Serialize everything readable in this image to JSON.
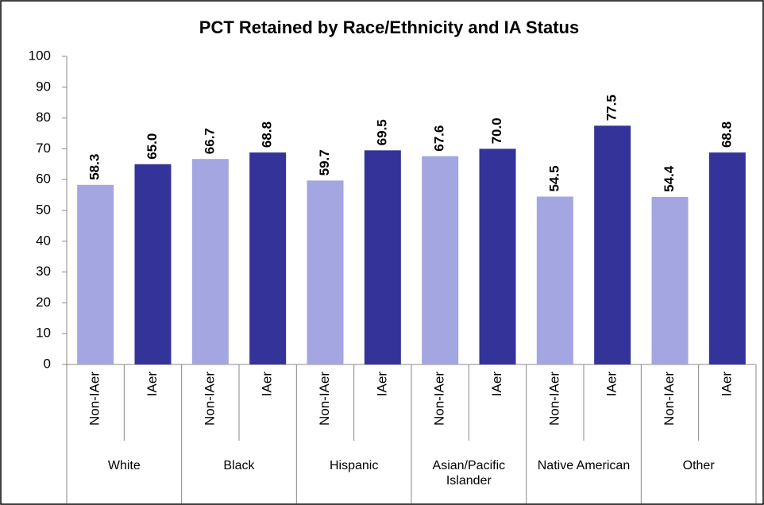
{
  "chart_data": {
    "type": "bar",
    "title": "PCT Retained by Race/Ethnicity and IA Status",
    "categories": [
      "White",
      "Black",
      "Hispanic",
      "Asian/Pacific Islander",
      "Native American",
      "Other"
    ],
    "series": [
      {
        "name": "Non-IAer",
        "color": "#a3a6e0",
        "values": [
          58.3,
          66.7,
          59.7,
          67.6,
          54.5,
          54.4
        ],
        "value_labels": [
          "58.3",
          "66.7",
          "59.7",
          "67.6",
          "54.5",
          "54.4"
        ]
      },
      {
        "name": "IAer",
        "color": "#333399",
        "values": [
          65.0,
          68.8,
          69.5,
          70.0,
          77.5,
          68.8
        ],
        "value_labels": [
          "65.0",
          "68.8",
          "69.5",
          "70.0",
          "77.5",
          "68.8"
        ]
      }
    ],
    "ylim": [
      0,
      100
    ],
    "yticks": [
      0,
      10,
      20,
      30,
      40,
      50,
      60,
      70,
      80,
      90,
      100
    ],
    "grid": false
  }
}
